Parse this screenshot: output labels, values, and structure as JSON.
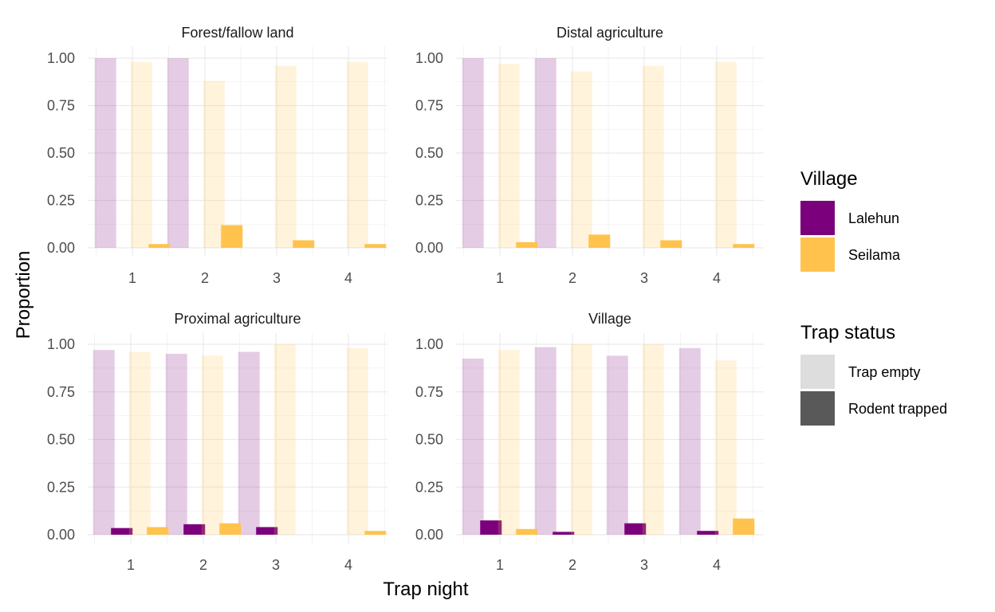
{
  "chart_data": {
    "type": "bar",
    "xlabel": "Trap night",
    "ylabel": "Proportion",
    "ylim": [
      0,
      1
    ],
    "yticks": [
      0,
      0.25,
      0.5,
      0.75,
      1
    ],
    "ytick_labels": [
      "0.00",
      "0.25",
      "0.50",
      "0.75",
      "1.00"
    ],
    "categories": [
      "1",
      "2",
      "3",
      "4"
    ],
    "grid": true,
    "legend_position": "right",
    "colors": {
      "Lalehun": "#7B007B",
      "Seilama": "#FFC34D",
      "empty_alpha": 0.2,
      "grid": "#EBEBEB"
    },
    "legends": [
      {
        "title": "Village",
        "items": [
          {
            "label": "Lalehun",
            "color": "#7B007B"
          },
          {
            "label": "Seilama",
            "color": "#FFC34D"
          }
        ]
      },
      {
        "title": "Trap status",
        "items": [
          {
            "label": "Trap empty",
            "color": "#DDDDDD"
          },
          {
            "label": "Rodent trapped",
            "color": "#595959"
          }
        ]
      }
    ],
    "panels": [
      {
        "title": "Forest/fallow land",
        "series": [
          {
            "village": "Lalehun",
            "status": "Trap empty",
            "values": [
              1.0,
              1.0,
              0,
              0
            ]
          },
          {
            "village": "Lalehun",
            "status": "Rodent trapped",
            "values": [
              0,
              0,
              0,
              0
            ]
          },
          {
            "village": "Seilama",
            "status": "Trap empty",
            "values": [
              0.98,
              0.88,
              0.96,
              0.98
            ]
          },
          {
            "village": "Seilama",
            "status": "Rodent trapped",
            "values": [
              0.02,
              0.12,
              0.04,
              0.02
            ]
          }
        ]
      },
      {
        "title": "Distal agriculture",
        "series": [
          {
            "village": "Lalehun",
            "status": "Trap empty",
            "values": [
              1.0,
              1.0,
              0,
              0
            ]
          },
          {
            "village": "Lalehun",
            "status": "Rodent trapped",
            "values": [
              0,
              0,
              0,
              0
            ]
          },
          {
            "village": "Seilama",
            "status": "Trap empty",
            "values": [
              0.97,
              0.93,
              0.96,
              0.98
            ]
          },
          {
            "village": "Seilama",
            "status": "Rodent trapped",
            "values": [
              0.03,
              0.07,
              0.04,
              0.02
            ]
          }
        ]
      },
      {
        "title": "Proximal agriculture",
        "series": [
          {
            "village": "Lalehun",
            "status": "Trap empty",
            "values": [
              0.97,
              0.95,
              0.96,
              0
            ]
          },
          {
            "village": "Lalehun",
            "status": "Rodent trapped",
            "values": [
              0.035,
              0.055,
              0.04,
              0
            ]
          },
          {
            "village": "Seilama",
            "status": "Trap empty",
            "values": [
              0.96,
              0.94,
              1.0,
              0.98
            ]
          },
          {
            "village": "Seilama",
            "status": "Rodent trapped",
            "values": [
              0.04,
              0.06,
              0,
              0.02
            ]
          }
        ]
      },
      {
        "title": "Village",
        "series": [
          {
            "village": "Lalehun",
            "status": "Trap empty",
            "values": [
              0.925,
              0.985,
              0.94,
              0.98
            ]
          },
          {
            "village": "Lalehun",
            "status": "Rodent trapped",
            "values": [
              0.075,
              0.015,
              0.06,
              0.02
            ]
          },
          {
            "village": "Seilama",
            "status": "Trap empty",
            "values": [
              0.97,
              1.0,
              1.0,
              0.915
            ]
          },
          {
            "village": "Seilama",
            "status": "Rodent trapped",
            "values": [
              0.03,
              0,
              0,
              0.085
            ]
          }
        ]
      }
    ]
  }
}
